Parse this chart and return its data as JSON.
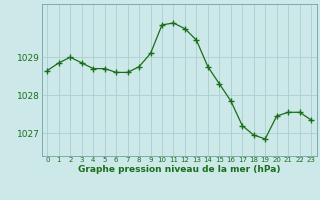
{
  "hours": [
    0,
    1,
    2,
    3,
    4,
    5,
    6,
    7,
    8,
    9,
    10,
    11,
    12,
    13,
    14,
    15,
    16,
    17,
    18,
    19,
    20,
    21,
    22,
    23
  ],
  "pressure": [
    1028.65,
    1028.85,
    1029.0,
    1028.85,
    1028.7,
    1028.7,
    1028.6,
    1028.6,
    1028.75,
    1029.1,
    1029.85,
    1029.9,
    1029.75,
    1029.45,
    1028.75,
    1028.3,
    1027.85,
    1027.2,
    1026.95,
    1026.85,
    1027.45,
    1027.55,
    1027.55,
    1027.35
  ],
  "line_color": "#1a6e1a",
  "marker_color": "#1a6e1a",
  "bg_color": "#cce8e8",
  "grid_color": "#aacfcf",
  "axis_label_color": "#1a6e1a",
  "tick_label_color": "#1a6e1a",
  "xlabel": "Graphe pression niveau de la mer (hPa)",
  "ylim_min": 1026.4,
  "ylim_max": 1030.4,
  "yticks": [
    1027,
    1028,
    1029
  ],
  "xtick_labels": [
    "0",
    "1",
    "2",
    "3",
    "4",
    "5",
    "6",
    "7",
    "8",
    "9",
    "10",
    "11",
    "12",
    "13",
    "14",
    "15",
    "16",
    "17",
    "18",
    "19",
    "20",
    "21",
    "22",
    "23"
  ]
}
